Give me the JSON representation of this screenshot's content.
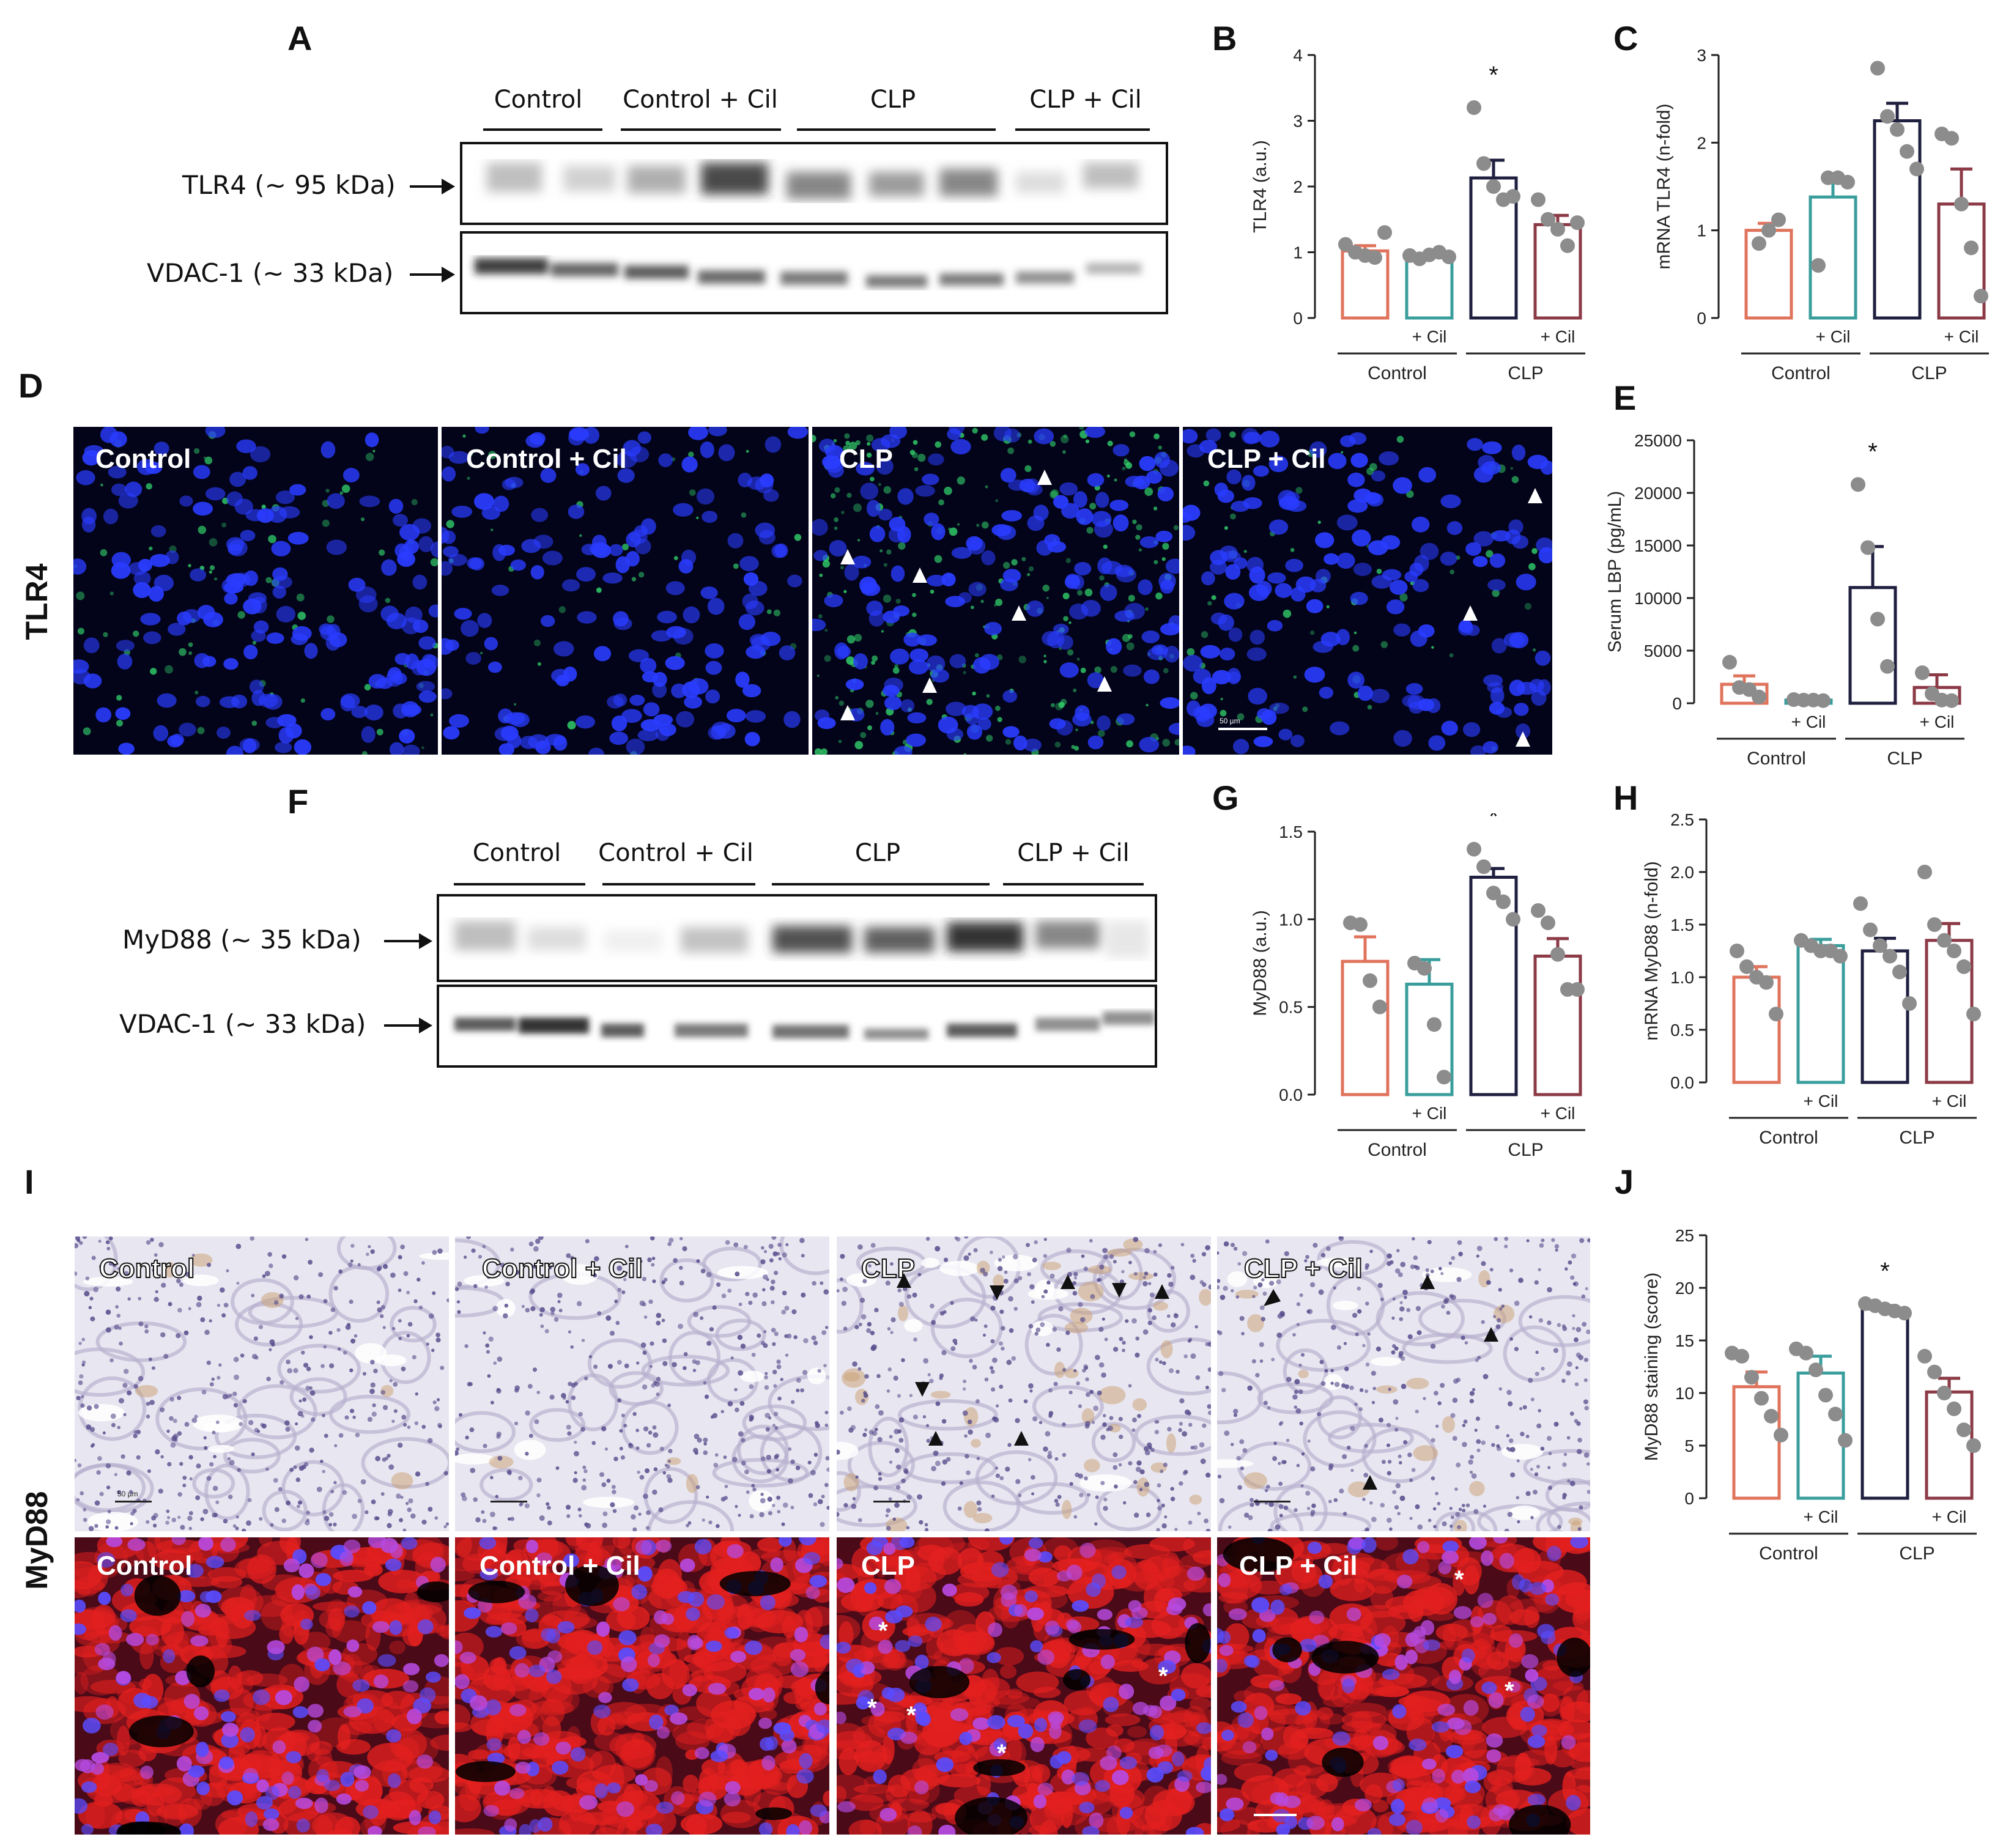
{
  "panels": {
    "A": "A",
    "B": "B",
    "C": "C",
    "D": "D",
    "E": "E",
    "F": "F",
    "G": "G",
    "H": "H",
    "I": "I",
    "J": "J"
  },
  "blot_groups": [
    "Control",
    "Control + Cil",
    "CLP",
    "CLP + Cil"
  ],
  "panel_a": {
    "row1": "TLR4 (~ 95 kDa)",
    "row2": "VDAC-1 (~ 33 kDa)"
  },
  "panel_f": {
    "row1": "MyD88 (~ 35 kDa)",
    "row2": "VDAC-1 (~ 33 kDa)"
  },
  "panel_d": {
    "side_label": "TLR4",
    "titles": [
      "Control",
      "Control + Cil",
      "CLP",
      "CLP + Cil"
    ],
    "scale": "50 µm"
  },
  "panel_i": {
    "side_label": "MyD88",
    "titles": [
      "Control",
      "Control + Cil",
      "CLP",
      "CLP + Cil"
    ],
    "scale": "50 µm"
  },
  "bar_x_labels": {
    "cil": "+ Cil",
    "control": "Control",
    "clp": "CLP",
    "star": "*"
  },
  "colors": {
    "control": "#e0735c",
    "control_cil": "#3a9e9c",
    "clp": "#1f1f3f",
    "clp_cil": "#8b3a46",
    "dots": "#8c8c8c",
    "fl_blue": "#2a3cff",
    "fl_green": "#32d06a",
    "fl_red": "#e3201f",
    "ihc_bg": "#e8e6f0"
  },
  "chart_data": [
    {
      "id": "B",
      "type": "bar",
      "ylabel": "TLR4 (a.u.)",
      "ylim": [
        0,
        4
      ],
      "yticks": [
        "0",
        "1",
        "2",
        "3",
        "4"
      ],
      "categories": [
        "Control",
        "Control + Cil",
        "CLP",
        "CLP + Cil"
      ],
      "values": [
        1.02,
        0.95,
        2.13,
        1.42
      ],
      "errors": [
        0.08,
        0.03,
        0.27,
        0.14
      ],
      "points": [
        [
          1.12,
          1.0,
          0.95,
          0.92,
          1.3
        ],
        [
          0.95,
          0.9,
          0.96,
          1.0,
          0.93
        ],
        [
          3.2,
          2.35,
          2.0,
          1.8,
          1.85
        ],
        [
          1.8,
          1.5,
          1.35,
          1.1,
          1.45
        ]
      ],
      "significant": [
        false,
        false,
        true,
        false
      ]
    },
    {
      "id": "C",
      "type": "bar",
      "ylabel": "mRNA TLR4 (n-fold)",
      "ylim": [
        0,
        3
      ],
      "yticks": [
        "0",
        "1",
        "2",
        "3"
      ],
      "categories": [
        "Control",
        "Control + Cil",
        "CLP",
        "CLP + Cil"
      ],
      "values": [
        1.0,
        1.38,
        2.25,
        1.3
      ],
      "errors": [
        0.08,
        0.25,
        0.2,
        0.4
      ],
      "points": [
        [
          0.85,
          1.0,
          1.12
        ],
        [
          0.6,
          1.6,
          1.6,
          1.55
        ],
        [
          2.85,
          2.3,
          2.15,
          1.9,
          1.7
        ],
        [
          2.1,
          2.05,
          1.3,
          0.8,
          0.25
        ]
      ],
      "significant": [
        false,
        false,
        true,
        false
      ]
    },
    {
      "id": "E",
      "type": "bar",
      "ylabel": "Serum LBP (pg/mL)",
      "ylim": [
        0,
        25000
      ],
      "yticks": [
        "0",
        "5000",
        "10000",
        "15000",
        "20000",
        "25000"
      ],
      "categories": [
        "Control",
        "Control + Cil",
        "CLP",
        "CLP + Cil"
      ],
      "values": [
        1800,
        300,
        11000,
        1500
      ],
      "errors": [
        800,
        60,
        3900,
        1200
      ],
      "points": [
        [
          3900,
          1500,
          1300,
          600
        ],
        [
          350,
          300,
          300,
          250
        ],
        [
          20800,
          14800,
          8000,
          3500
        ],
        [
          2900,
          900,
          300,
          250
        ]
      ],
      "significant": [
        false,
        false,
        true,
        false
      ]
    },
    {
      "id": "G",
      "type": "bar",
      "ylabel": "MyD88 (a.u.)",
      "ylim": [
        0,
        1.5
      ],
      "yticks": [
        "0.0",
        "0.5",
        "1.0",
        "1.5"
      ],
      "categories": [
        "Control",
        "Control + Cil",
        "CLP",
        "CLP + Cil"
      ],
      "values": [
        0.76,
        0.63,
        1.24,
        0.79
      ],
      "errors": [
        0.14,
        0.14,
        0.05,
        0.1
      ],
      "points": [
        [
          0.98,
          0.97,
          0.65,
          0.5
        ],
        [
          0.75,
          0.72,
          0.4,
          0.1
        ],
        [
          1.4,
          1.3,
          1.15,
          1.1,
          1.0
        ],
        [
          1.05,
          0.98,
          0.8,
          0.6,
          0.6
        ]
      ],
      "significant": [
        false,
        false,
        true,
        false
      ]
    },
    {
      "id": "H",
      "type": "bar",
      "ylabel": "mRNA MyD88 (n-fold)",
      "ylim": [
        0,
        2.5
      ],
      "yticks": [
        "0.0",
        "0.5",
        "1.0",
        "1.5",
        "2.0",
        "2.5"
      ],
      "categories": [
        "Control",
        "Control + Cil",
        "CLP",
        "CLP + Cil"
      ],
      "values": [
        1.0,
        1.3,
        1.25,
        1.35
      ],
      "errors": [
        0.1,
        0.06,
        0.12,
        0.16
      ],
      "points": [
        [
          1.25,
          1.1,
          1.0,
          0.95,
          0.65
        ],
        [
          1.35,
          1.3,
          1.25,
          1.25,
          1.2
        ],
        [
          1.7,
          1.45,
          1.3,
          1.2,
          1.05,
          0.75
        ],
        [
          2.0,
          1.5,
          1.35,
          1.25,
          1.1,
          0.65
        ]
      ],
      "significant": [
        false,
        false,
        false,
        false
      ]
    },
    {
      "id": "J",
      "type": "bar",
      "ylabel": "MyD88 staining (score)",
      "ylim": [
        0,
        25
      ],
      "yticks": [
        "0",
        "5",
        "10",
        "15",
        "20",
        "25"
      ],
      "categories": [
        "Control",
        "Control + Cil",
        "CLP",
        "CLP + Cil"
      ],
      "values": [
        10.6,
        11.9,
        18.0,
        10.1
      ],
      "errors": [
        1.4,
        1.6,
        0.3,
        1.3
      ],
      "points": [
        [
          13.8,
          13.5,
          11.5,
          9.5,
          7.8,
          6.0
        ],
        [
          14.2,
          13.8,
          12.2,
          9.8,
          8.0,
          5.5
        ],
        [
          18.5,
          18.3,
          18.0,
          17.8,
          17.6
        ],
        [
          13.5,
          12.0,
          10.0,
          8.5,
          6.5,
          5.0
        ]
      ],
      "significant": [
        false,
        false,
        true,
        false
      ]
    }
  ]
}
